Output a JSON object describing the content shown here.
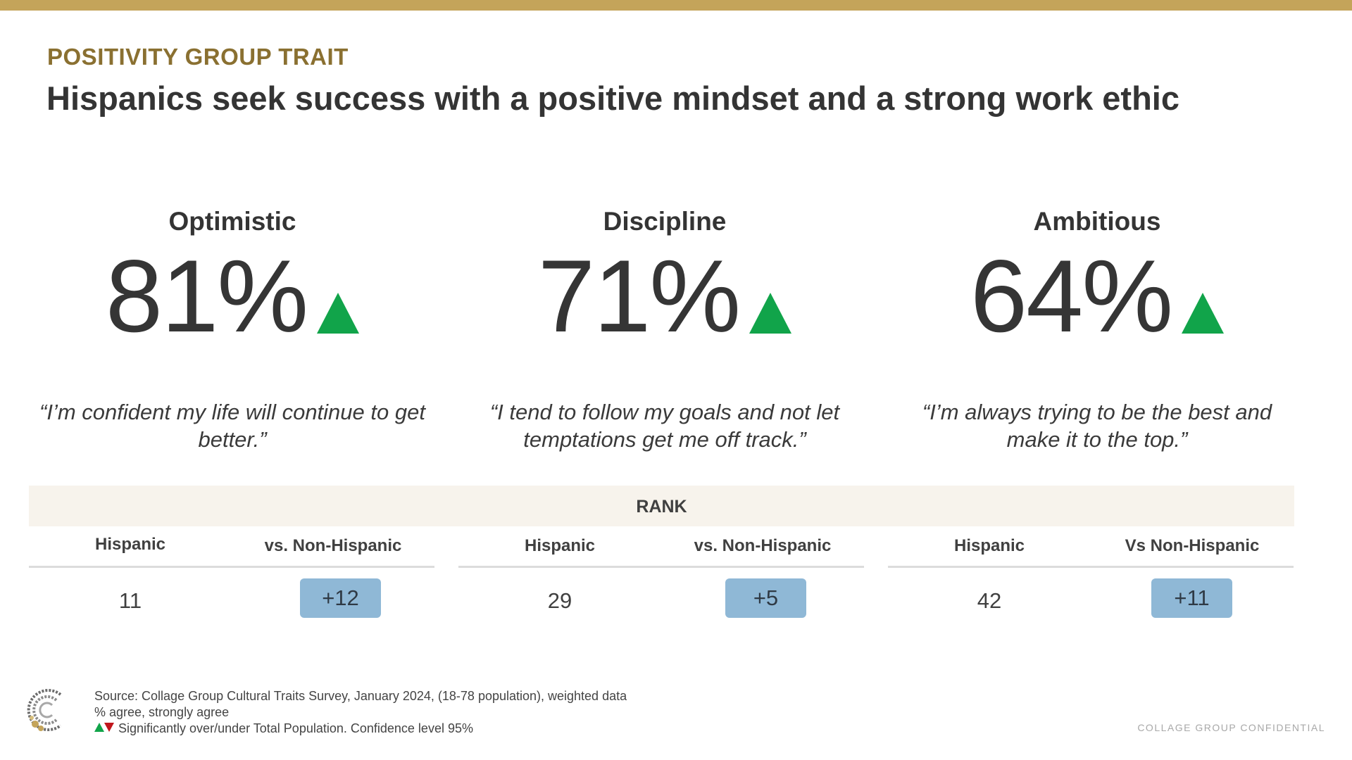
{
  "colors": {
    "accent_gold": "#c4a45a",
    "eyebrow_gold": "#8a7031",
    "increase_green": "#11a44a",
    "decrease_red": "#c0161c",
    "badge_blue": "#8fb8d6",
    "rank_header_bg": "#f7f3ec"
  },
  "header": {
    "eyebrow": "POSITIVITY GROUP TRAIT",
    "headline": "Hispanics seek success with a positive mindset and a strong work ethic"
  },
  "traits": [
    {
      "name": "Optimistic",
      "value": "81%",
      "indicator_icon": "triangle-up-icon",
      "quote": "“I’m confident my life will continue to get better.”"
    },
    {
      "name": "Discipline",
      "value": "71%",
      "indicator_icon": "triangle-up-icon",
      "quote": "“I tend to follow my goals and not let temptations get me off track.”"
    },
    {
      "name": "Ambitious",
      "value": "64%",
      "indicator_icon": "triangle-up-icon",
      "quote": "“I’m always trying to be the best and make it to the top.”"
    }
  ],
  "rank": {
    "title": "RANK",
    "groups": [
      {
        "col1": "Hispanic",
        "col2": "vs. Non-Hispanic",
        "hispanic_rank": "11",
        "vs_value": "+12"
      },
      {
        "col1": "Hispanic",
        "col2": "vs. Non-Hispanic",
        "hispanic_rank": "29",
        "vs_value": "+5"
      },
      {
        "col1": "Hispanic",
        "col2": "Vs Non-Hispanic",
        "hispanic_rank": "42",
        "vs_value": "+11"
      }
    ]
  },
  "footer": {
    "source": "Source: Collage Group Cultural Traits Survey, January 2024, (18-78 population), weighted data",
    "measure": "% agree, strongly agree",
    "significance": "Significantly over/under Total Population. Confidence level 95%",
    "confidential": "COLLAGE GROUP CONFIDENTIAL",
    "logo_icon": "collage-group-logo-icon"
  }
}
